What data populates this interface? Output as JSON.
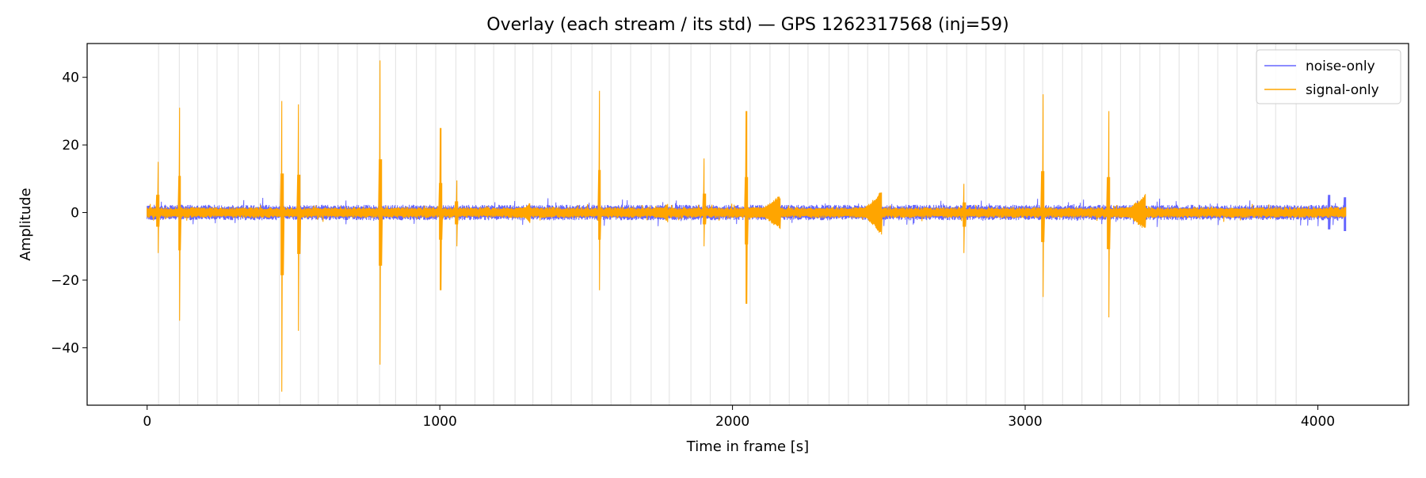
{
  "chart_data": {
    "type": "line",
    "title": "Overlay (each stream / its std) — GPS 1262317568 (inj=59)",
    "xlabel": "Time in frame [s]",
    "ylabel": "Amplitude",
    "xlim": [
      -205,
      4310
    ],
    "ylim": [
      -57,
      50
    ],
    "x_ticks": [
      0,
      1000,
      2000,
      3000,
      4000
    ],
    "x_tick_labels": [
      "0",
      "1000",
      "2000",
      "3000",
      "4000"
    ],
    "y_ticks": [
      -40,
      -20,
      0,
      20,
      40
    ],
    "y_tick_labels": [
      "−40",
      "−20",
      "0",
      "20",
      "40"
    ],
    "grid": "off",
    "legend": {
      "placement": "top-right",
      "entries": [
        "noise-only",
        "signal-only"
      ]
    },
    "duration": 4096,
    "injection_markers_x": [
      39,
      110,
      173,
      239,
      311,
      381,
      452,
      524,
      585,
      652,
      718,
      794,
      849,
      920,
      986,
      1055,
      1120,
      1184,
      1257,
      1318,
      1382,
      1449,
      1520,
      1585,
      1652,
      1722,
      1784,
      1858,
      1924,
      1994,
      2060,
      2128,
      2194,
      2258,
      2330,
      2396,
      2462,
      2534,
      2602,
      2664,
      2732,
      2800,
      2866,
      2932,
      2996,
      3060,
      3128,
      3194,
      3262,
      3326,
      3392,
      3460,
      3526,
      3592,
      3658,
      3724,
      3792,
      3856,
      3926
    ],
    "series": [
      {
        "name": "noise-only",
        "color": "#6666ff",
        "base_envelope": 2.3,
        "peaks": [
          {
            "x": 4040,
            "max": 5.2,
            "min": -5.0
          },
          {
            "x": 4094,
            "max": 4.5,
            "min": -5.5
          }
        ]
      },
      {
        "name": "signal-only",
        "color": "#ffa500",
        "base_envelope": 1.6,
        "spikes": [
          {
            "x": 37,
            "max": 15,
            "min": -12
          },
          {
            "x": 111,
            "max": 31,
            "min": -32
          },
          {
            "x": 461,
            "max": 33,
            "min": -53
          },
          {
            "x": 518,
            "max": 32,
            "min": -35
          },
          {
            "x": 797,
            "max": 45,
            "min": -45
          },
          {
            "x": 1003,
            "max": 25,
            "min": -23
          },
          {
            "x": 1058,
            "max": 9.5,
            "min": -10
          },
          {
            "x": 1546,
            "max": 36,
            "min": -23
          },
          {
            "x": 1904,
            "max": 16,
            "min": -10
          },
          {
            "x": 2048,
            "max": 30,
            "min": -27
          },
          {
            "x": 2792,
            "max": 8.5,
            "min": -12
          },
          {
            "x": 3061,
            "max": 35,
            "min": -25
          },
          {
            "x": 3286,
            "max": 30,
            "min": -31
          }
        ],
        "chirps": [
          {
            "start": 2060,
            "end": 2165,
            "peak": 5.5
          },
          {
            "start": 2420,
            "end": 2512,
            "peak": 7.5
          },
          {
            "start": 3320,
            "end": 3412,
            "peak": 6.0
          },
          {
            "start": 1260,
            "end": 1310,
            "peak": 3.5
          },
          {
            "start": 1730,
            "end": 1780,
            "peak": 3.0
          }
        ]
      }
    ]
  }
}
